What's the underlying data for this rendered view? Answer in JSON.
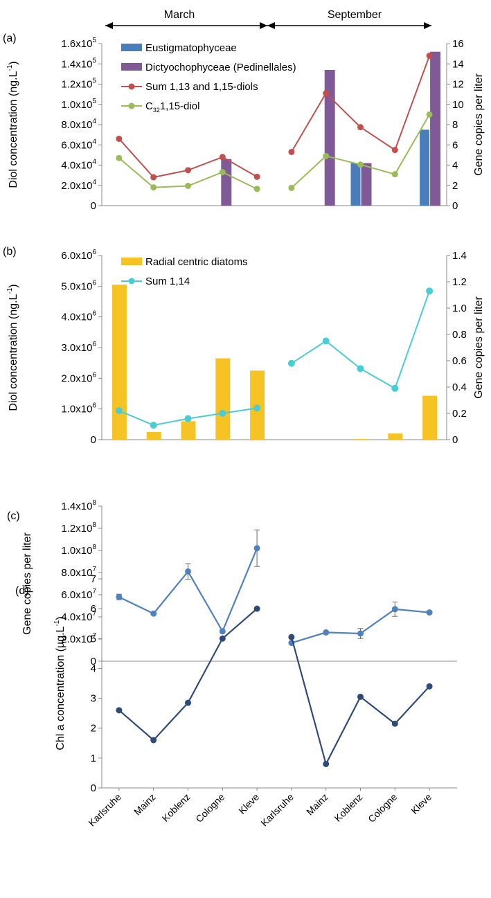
{
  "header": {
    "march_label": "March",
    "september_label": "September"
  },
  "chart_data": [
    {
      "panel": "(a)",
      "type": "bar+line",
      "categories": [
        "Karlsruhe",
        "Mainz",
        "Koblenz",
        "Cologne",
        "Kleve",
        "Karlsruhe",
        "Mainz",
        "Koblenz",
        "Cologne",
        "Kleve"
      ],
      "ylabel": "Diol concentration (ng.L",
      "ylabel_sup": "-1",
      "ylabel_close": ")",
      "y2label": "Gene copies per liter",
      "ylim": [
        0,
        160000
      ],
      "y2lim": [
        0,
        16
      ],
      "yticks": [
        "0",
        "2.0x10",
        "4.0x10",
        "6.0x10",
        "8.0x10",
        "1.0x10",
        "1.2x10",
        "1.4x10",
        "1.6x10"
      ],
      "ytick_exp": [
        "",
        "4",
        "4",
        "4",
        "4",
        "5",
        "5",
        "5",
        "5"
      ],
      "y2ticks": [
        "0",
        "2",
        "4",
        "6",
        "8",
        "10",
        "12",
        "14",
        "16"
      ],
      "bar_series": [
        {
          "name": "Eustigmatophyceae",
          "color": "#4a7ebb",
          "values": [
            0,
            0,
            0,
            0,
            0,
            0,
            0,
            4.2,
            0,
            7.5
          ]
        },
        {
          "name": "Dictyochophyceae (Pedinellales)",
          "color": "#7f5a97",
          "values": [
            0,
            0,
            0,
            4.6,
            0,
            0,
            13.4,
            4.2,
            0,
            15.2
          ]
        }
      ],
      "line_series": [
        {
          "name": "Sum 1,13 and 1,15-diols",
          "color": "#c0504d",
          "values": [
            66000,
            28000,
            35000,
            48000,
            28500,
            53000,
            111000,
            77500,
            55000,
            148000
          ]
        },
        {
          "name": "C",
          "name_sub": "32",
          "name_rest": "1,15-diol",
          "color": "#9bbb59",
          "values": [
            47000,
            18000,
            19500,
            33000,
            16500,
            17500,
            49000,
            40500,
            31000,
            90000
          ]
        }
      ]
    },
    {
      "panel": "(b)",
      "type": "bar+line",
      "categories": [
        "Karlsruhe",
        "Mainz",
        "Koblenz",
        "Cologne",
        "Kleve",
        "Karlsruhe",
        "Mainz",
        "Koblenz",
        "Cologne",
        "Kleve"
      ],
      "ylabel": "Diol concentration (ng.L",
      "ylabel_sup": "-1",
      "ylabel_close": ")",
      "y2label": "Gene copies per liter",
      "ylim": [
        0,
        6000000
      ],
      "y2lim": [
        0,
        1.4
      ],
      "yticks": [
        "0",
        "1.0x10",
        "2.0x10",
        "3.0x10",
        "4.0x10",
        "5.0x10",
        "6.0x10"
      ],
      "ytick_exp": [
        "",
        "6",
        "6",
        "6",
        "6",
        "6",
        "6"
      ],
      "y2ticks": [
        "0",
        "0.2",
        "0.4",
        "0.6",
        "0.8",
        "1.0",
        "1.2",
        "1.4"
      ],
      "bar_series": [
        {
          "name": "Radial centric diatoms",
          "color": "#f6c324",
          "values": [
            5050000,
            250000,
            600000,
            2650000,
            2250000,
            0,
            0,
            20000,
            200000,
            1430000
          ]
        }
      ],
      "line_series": [
        {
          "name": "Sum 1,14",
          "color": "#4bcbd6",
          "values": [
            0.22,
            0.11,
            0.16,
            0.2,
            0.24,
            0.58,
            0.75,
            0.54,
            0.39,
            1.13
          ]
        }
      ]
    },
    {
      "panel": "(c)",
      "type": "line",
      "categories": [
        "Karlsruhe",
        "Mainz",
        "Koblenz",
        "Cologne",
        "Kleve",
        "Karlsruhe",
        "Mainz",
        "Koblenz",
        "Cologne",
        "Kleve"
      ],
      "ylabel": "Gene copies per liter",
      "ylim": [
        0,
        140000000
      ],
      "yticks": [
        "0",
        "2.0x10",
        "4.0x10",
        "6.0x10",
        "8.0x10",
        "1.0x10",
        "1.2x10",
        "1.4x10"
      ],
      "ytick_exp": [
        "",
        "7",
        "7",
        "7",
        "7",
        "8",
        "8",
        "8"
      ],
      "series": [
        {
          "color": "#4f81bd",
          "values": [
            58000000,
            43000000,
            81000000,
            27000000,
            102000000,
            16500000,
            26000000,
            25000000,
            47000000,
            44000000
          ],
          "errors": [
            2500000,
            0,
            7000000,
            0,
            16500000,
            0,
            1000000,
            4500000,
            6500000,
            0
          ]
        }
      ]
    },
    {
      "panel": "(d)",
      "type": "line",
      "categories": [
        "Karlsruhe",
        "Mainz",
        "Koblenz",
        "Cologne",
        "Kleve",
        "Karlsruhe",
        "Mainz",
        "Koblenz",
        "Cologne",
        "Kleve"
      ],
      "ylabel": "Chl a concentration (µg.L",
      "ylabel_sup": "-1",
      "ylabel_close": ")",
      "ylim": [
        0,
        7
      ],
      "yticks": [
        "0",
        "1",
        "2",
        "3",
        "4",
        "5",
        "6",
        "7"
      ],
      "series": [
        {
          "color": "#2e4a76",
          "values": [
            2.6,
            1.6,
            2.85,
            5.0,
            6.0,
            5.05,
            0.8,
            3.05,
            2.15,
            3.4
          ]
        }
      ]
    }
  ]
}
